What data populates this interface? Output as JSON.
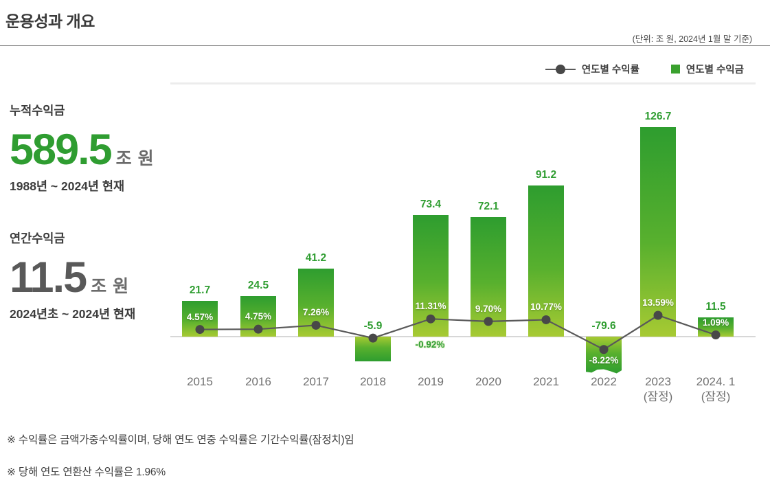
{
  "header": {
    "title": "운용성과 개요",
    "unit_note": "(단위: 조 원, 2024년 1월 말 기준)"
  },
  "legend": {
    "rate_label": "연도별 수익률",
    "amount_label": "연도별 수익금"
  },
  "stats": [
    {
      "title": "누적수익금",
      "value": "589.5",
      "unit": "조 원",
      "period": "1988년 ~ 2024년 현재",
      "value_color": "#2f9d31"
    },
    {
      "title": "연간수익금",
      "value": "11.5",
      "unit": "조 원",
      "period": "2024년초 ~ 2024년 현재",
      "value_color": "#595959"
    }
  ],
  "chart_data": {
    "type": "bar",
    "subtype": "bar+line combo",
    "categories": [
      {
        "label": "2015",
        "sub": ""
      },
      {
        "label": "2016",
        "sub": ""
      },
      {
        "label": "2017",
        "sub": ""
      },
      {
        "label": "2018",
        "sub": ""
      },
      {
        "label": "2019",
        "sub": ""
      },
      {
        "label": "2020",
        "sub": ""
      },
      {
        "label": "2021",
        "sub": ""
      },
      {
        "label": "2022",
        "sub": ""
      },
      {
        "label": "2023",
        "sub": "(잠정)"
      },
      {
        "label": "2024. 1",
        "sub": "(잠정)"
      }
    ],
    "series": [
      {
        "name": "연도별 수익금",
        "type": "bar",
        "unit": "조 원",
        "values": [
          21.7,
          24.5,
          41.2,
          -5.9,
          73.4,
          72.1,
          91.2,
          -79.6,
          126.7,
          11.5
        ],
        "value_labels": [
          "21.7",
          "24.5",
          "41.2",
          "-5.9",
          "73.4",
          "72.1",
          "91.2",
          "-79.6",
          "126.7",
          "11.5"
        ]
      },
      {
        "name": "연도별 수익률",
        "type": "line",
        "unit": "%",
        "values": [
          4.57,
          4.75,
          7.26,
          -0.92,
          11.31,
          9.7,
          10.77,
          -8.22,
          13.59,
          1.09
        ],
        "value_labels": [
          "4.57%",
          "4.75%",
          "7.26%",
          "-0.92%",
          "11.31%",
          "9.70%",
          "10.77%",
          "-8.22%",
          "13.59%",
          "1.09%"
        ],
        "label_placement": [
          "above",
          "above",
          "above",
          "right-below",
          "above",
          "above",
          "above",
          "below",
          "above",
          "above"
        ]
      }
    ],
    "baseline": 0,
    "grid": false,
    "legend_position": "top-right",
    "colors": {
      "bar_top": "#2e9d2f",
      "bar_mid": "#58b02e",
      "bar_bottom": "#a7ca33",
      "line": "#595959",
      "dot": "#484848",
      "label_green": "#2f9d31",
      "legend_square": "#3aa12e"
    }
  },
  "footnotes": [
    "※ 수익률은 금액가중수익률이며, 당해 연도 연중 수익률은 기간수익률(잠정치)임",
    "※ 당해 연도 연환산 수익률은 1.96%"
  ]
}
